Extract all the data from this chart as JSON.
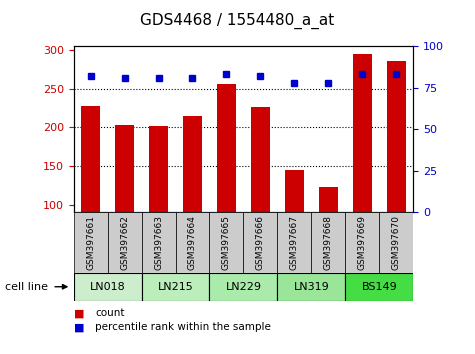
{
  "title": "GDS4468 / 1554480_a_at",
  "samples": [
    "GSM397661",
    "GSM397662",
    "GSM397663",
    "GSM397664",
    "GSM397665",
    "GSM397666",
    "GSM397667",
    "GSM397668",
    "GSM397669",
    "GSM397670"
  ],
  "counts": [
    228,
    203,
    202,
    214,
    256,
    226,
    145,
    123,
    295,
    286
  ],
  "percentile_ranks": [
    82,
    81,
    81,
    81,
    83,
    82,
    78,
    78,
    83,
    83
  ],
  "cell_lines": [
    {
      "name": "LN018",
      "samples": [
        0,
        1
      ],
      "color": "#cceecc"
    },
    {
      "name": "LN215",
      "samples": [
        2,
        3
      ],
      "color": "#bbeebb"
    },
    {
      "name": "LN229",
      "samples": [
        4,
        5
      ],
      "color": "#aaeaaa"
    },
    {
      "name": "LN319",
      "samples": [
        6,
        7
      ],
      "color": "#99e699"
    },
    {
      "name": "BS149",
      "samples": [
        8,
        9
      ],
      "color": "#44dd44"
    }
  ],
  "bar_color": "#cc0000",
  "dot_color": "#0000cc",
  "ylim_left": [
    90,
    305
  ],
  "yticks_left": [
    100,
    150,
    200,
    250,
    300
  ],
  "ylim_right": [
    0,
    100
  ],
  "yticks_right": [
    0,
    25,
    50,
    75,
    100
  ],
  "ylabel_left_color": "#cc0000",
  "ylabel_right_color": "#0000cc",
  "gridline_y": [
    150,
    200,
    250
  ],
  "bar_width": 0.55,
  "sample_box_color": "#cccccc",
  "legend_count_color": "#cc0000",
  "legend_pct_color": "#0000cc",
  "cell_line_label": "cell line",
  "title_fontsize": 11,
  "tick_fontsize": 8,
  "label_fontsize": 8,
  "sample_fontsize": 6.5
}
